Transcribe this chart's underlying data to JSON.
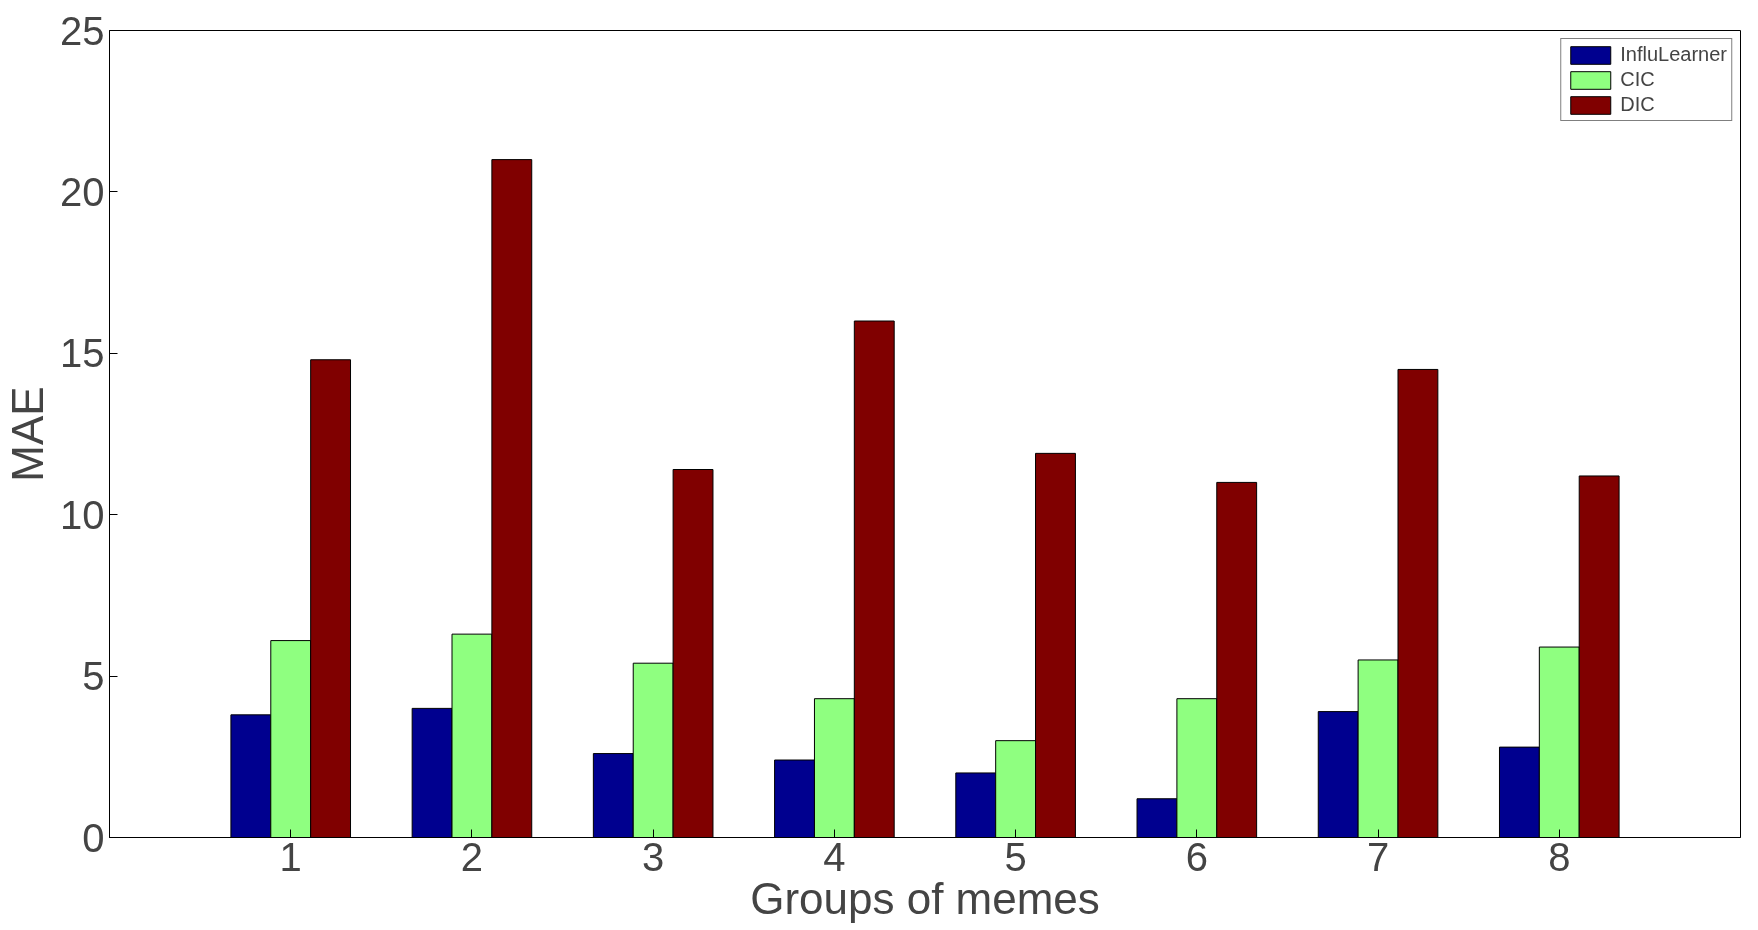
{
  "chart_data": {
    "type": "bar",
    "xlabel": "Groups of memes",
    "ylabel": "MAE",
    "categories": [
      "1",
      "2",
      "3",
      "4",
      "5",
      "6",
      "7",
      "8"
    ],
    "series": [
      {
        "name": "InfluLearner",
        "color": "#00008f",
        "values": [
          3.8,
          4.0,
          2.6,
          2.4,
          2.0,
          1.2,
          3.9,
          2.8
        ]
      },
      {
        "name": "CIC",
        "color": "#8fff80",
        "values": [
          6.1,
          6.3,
          5.4,
          4.3,
          3.0,
          4.3,
          5.5,
          5.9
        ]
      },
      {
        "name": "DIC",
        "color": "#800000",
        "values": [
          14.8,
          21.0,
          11.4,
          16.0,
          11.9,
          11.0,
          14.5,
          11.2
        ]
      }
    ],
    "ylim": [
      0,
      25
    ],
    "yticks": [
      0,
      5,
      10,
      15,
      20,
      25
    ],
    "grid": false,
    "legend": "top right"
  }
}
